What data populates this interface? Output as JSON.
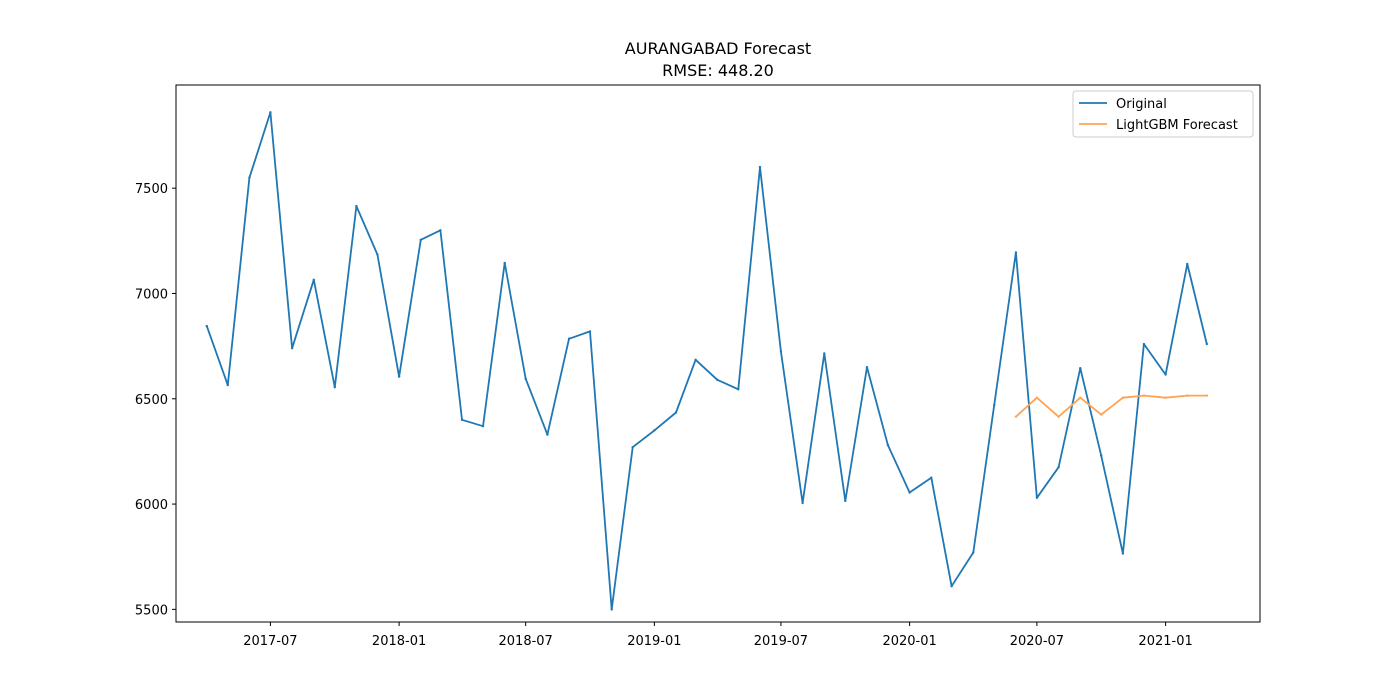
{
  "chart_data": {
    "type": "line",
    "title": "AURANGABAD Forecast",
    "subtitle": "RMSE: 448.20",
    "xlabel": "",
    "ylabel": "",
    "xlim": [
      "2017-02-16",
      "2021-05-16"
    ],
    "ylim": [
      5440,
      7990
    ],
    "x_ticks": [
      "2017-07",
      "2018-01",
      "2018-07",
      "2019-01",
      "2019-07",
      "2020-01",
      "2020-07",
      "2021-01"
    ],
    "y_ticks": [
      5500,
      6000,
      6500,
      7000,
      7500
    ],
    "grid": false,
    "legend_position": "top-right",
    "series": [
      {
        "name": "Original",
        "color": "#1f77b4",
        "x": [
          "2017-04-01",
          "2017-05-01",
          "2017-06-01",
          "2017-07-01",
          "2017-08-01",
          "2017-09-01",
          "2017-10-01",
          "2017-11-01",
          "2017-12-01",
          "2018-01-01",
          "2018-02-01",
          "2018-03-01",
          "2018-04-01",
          "2018-05-01",
          "2018-06-01",
          "2018-07-01",
          "2018-08-01",
          "2018-09-01",
          "2018-10-01",
          "2018-11-01",
          "2018-12-01",
          "2019-01-01",
          "2019-02-01",
          "2019-03-01",
          "2019-04-01",
          "2019-05-01",
          "2019-06-01",
          "2019-07-01",
          "2019-08-01",
          "2019-09-01",
          "2019-10-01",
          "2019-11-01",
          "2019-12-01",
          "2020-01-01",
          "2020-02-01",
          "2020-03-01",
          "2020-04-01",
          "2020-05-01",
          "2020-06-01",
          "2020-07-01",
          "2020-08-01",
          "2020-09-01",
          "2020-10-01",
          "2020-11-01",
          "2020-12-01",
          "2021-01-01",
          "2021-02-01",
          "2021-03-01"
        ],
        "y": [
          6845,
          6565,
          7550,
          7860,
          6740,
          7065,
          6555,
          7415,
          7185,
          6605,
          7255,
          7300,
          6400,
          6370,
          7145,
          6595,
          6330,
          6785,
          6820,
          5500,
          6270,
          6350,
          6435,
          6685,
          6590,
          6545,
          7600,
          6725,
          6005,
          6715,
          6015,
          6650,
          6280,
          6055,
          6125,
          5610,
          5770,
          6470,
          7195,
          6030,
          6175,
          6645,
          6230,
          5765,
          6760,
          6615,
          7140,
          6760
        ]
      },
      {
        "name": "LightGBM Forecast",
        "color": "#ffa352",
        "x": [
          "2020-06-01",
          "2020-07-01",
          "2020-08-01",
          "2020-09-01",
          "2020-10-01",
          "2020-11-01",
          "2020-12-01",
          "2021-01-01",
          "2021-02-01",
          "2021-03-01"
        ],
        "y": [
          6415,
          6505,
          6415,
          6505,
          6425,
          6505,
          6515,
          6505,
          6515,
          6515
        ]
      }
    ]
  }
}
